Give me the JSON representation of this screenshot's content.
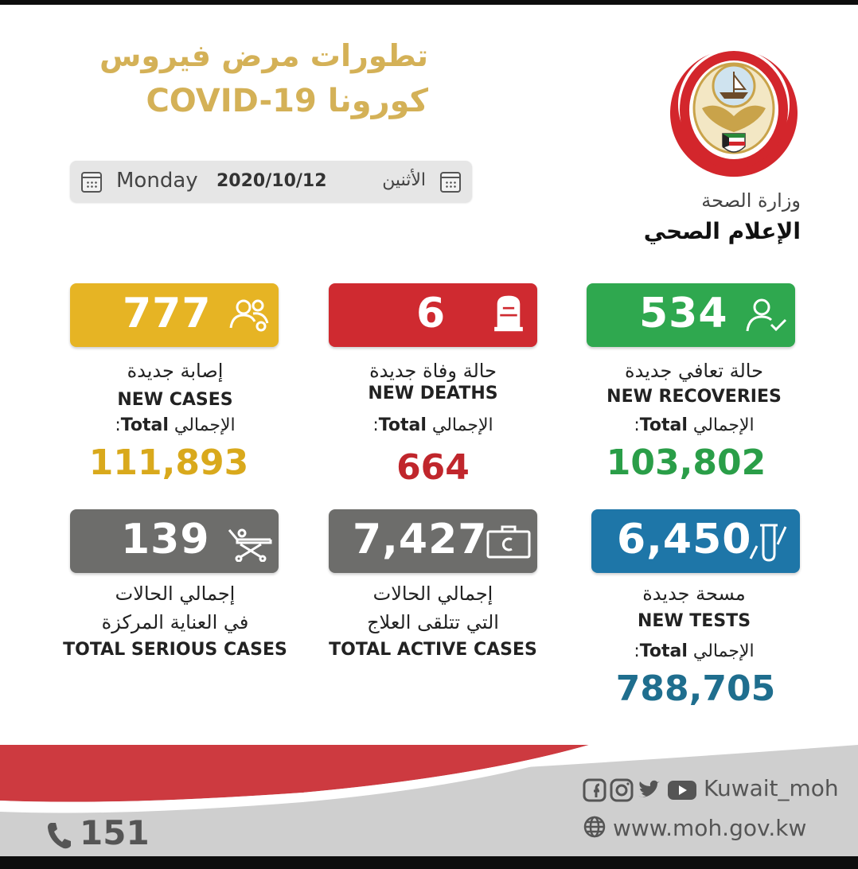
{
  "header": {
    "title_line1": "تطورات مرض فيروس",
    "title_line2": "كورونا COVID-19"
  },
  "date": {
    "day_en": "Monday",
    "date": "2020/10/12",
    "day_ar": "الأثنين"
  },
  "ministry": {
    "name_ar": "وزارة الصحة",
    "dept_ar": "الإعلام الصحي"
  },
  "stats": {
    "new_cases": {
      "value": "777",
      "label_ar": "إصابة جديدة",
      "label_en": "NEW CASES",
      "total_label_ar": "الإجمالي",
      "total_label_en": "Total",
      "total_value": "111,893",
      "color": "#e6b424",
      "total_color": "#d9a91c"
    },
    "new_deaths": {
      "value": "6",
      "label_ar": "حالة وفاة جديدة",
      "label_en": "NEW DEATHS",
      "total_label_ar": "الإجمالي",
      "total_label_en": "Total",
      "total_value": "664",
      "color": "#cf2a30",
      "total_color": "#c0262c"
    },
    "new_recoveries": {
      "value": "534",
      "label_ar": "حالة تعافي جديدة",
      "label_en": "NEW RECOVERIES",
      "total_label_ar": "الإجمالي",
      "total_label_en": "Total",
      "total_value": "103,802",
      "color": "#2fa84f",
      "total_color": "#2a9e48"
    },
    "serious_cases": {
      "value": "139",
      "label_ar_line1": "إجمالي الحالات",
      "label_ar_line2": "في العناية المركزة",
      "label_en": "TOTAL SERIOUS CASES",
      "color": "#6d6d6b"
    },
    "active_cases": {
      "value": "7,427",
      "label_ar_line1": "إجمالي الحالات",
      "label_ar_line2": "التي تتلقى العلاج",
      "label_en": "TOTAL ACTIVE CASES",
      "color": "#6d6d6b"
    },
    "new_tests": {
      "value": "6,450",
      "label_ar": "مسحة جديدة",
      "label_en": "NEW TESTS",
      "total_label_ar": "الإجمالي",
      "total_label_en": "Total",
      "total_value": "788,705",
      "color": "#1e76a8",
      "total_color": "#1f6e8e"
    }
  },
  "footer": {
    "phone": "151",
    "social_handle": "Kuwait_moh",
    "website": "www.moh.gov.kw",
    "social_icons": [
      "facebook-icon",
      "instagram-icon",
      "twitter-icon",
      "youtube-icon"
    ],
    "accent_red": "#cd3a40",
    "gray": "#cfcfcf"
  }
}
